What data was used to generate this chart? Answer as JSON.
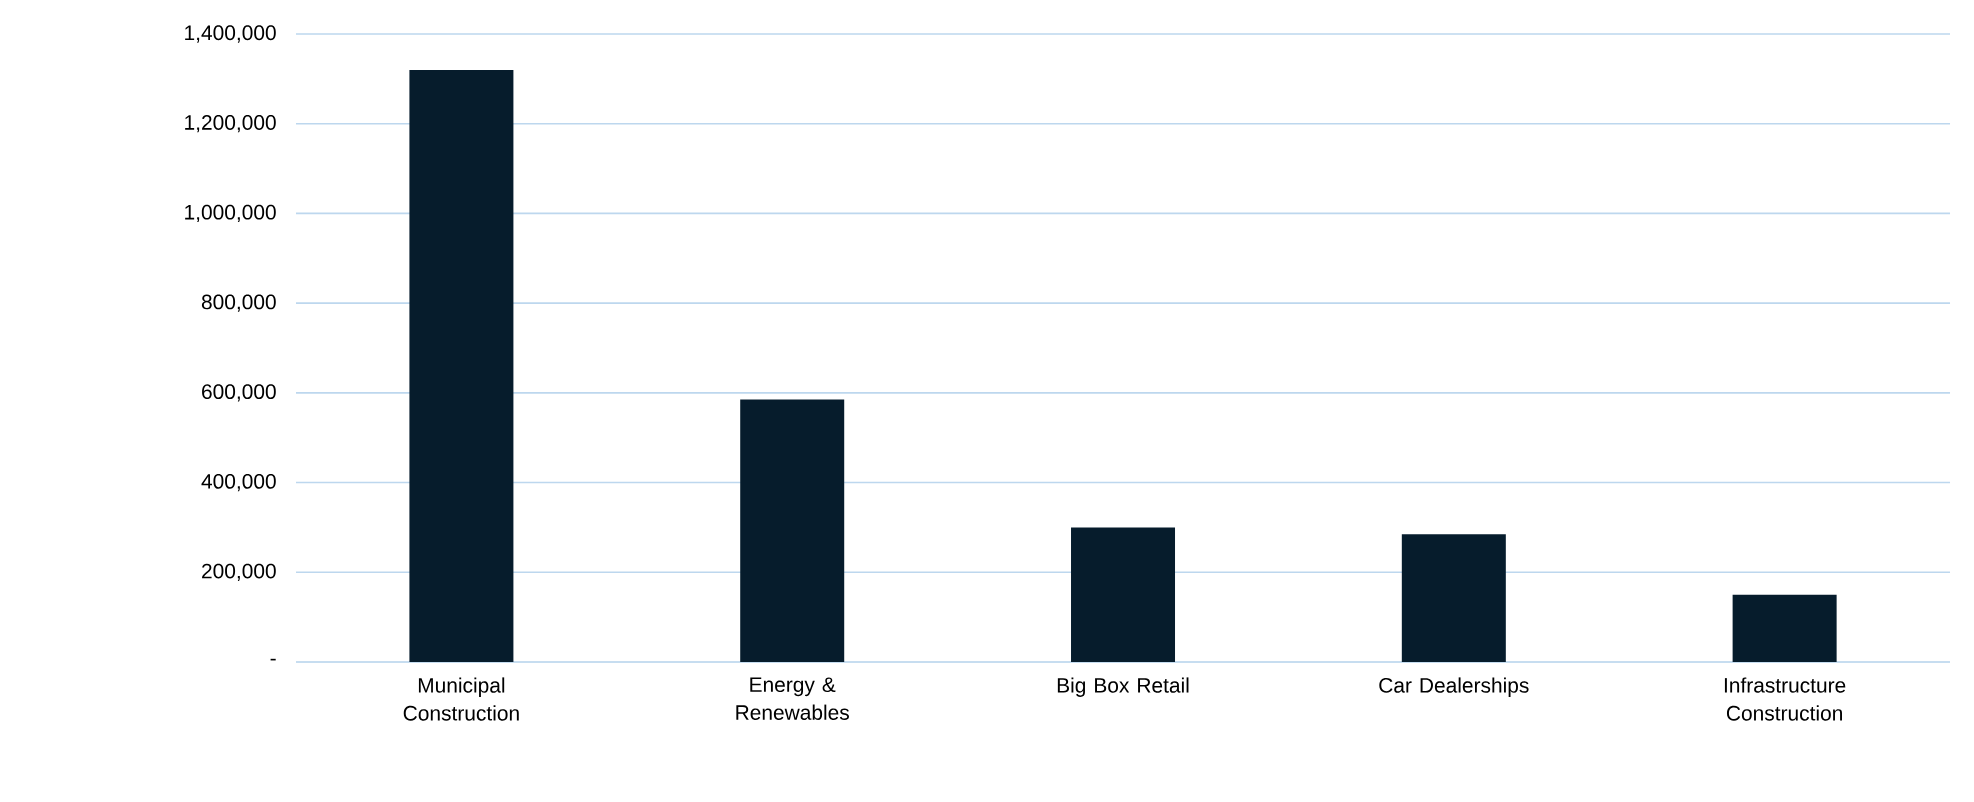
{
  "chart_data": {
    "type": "bar",
    "categories": [
      "Municipal Construction",
      "Energy & Renewables",
      "Big Box Retail",
      "Car Dealerships",
      "Infrastructure Construction"
    ],
    "values": [
      1320000,
      585000,
      300000,
      285000,
      150000
    ],
    "color": "#061c2c",
    "ylim": [
      0,
      1400000
    ],
    "yticks": [
      {
        "value": 0,
        "label": "-"
      },
      {
        "value": 200000,
        "label": "200,000"
      },
      {
        "value": 400000,
        "label": "400,000"
      },
      {
        "value": 600000,
        "label": "600,000"
      },
      {
        "value": 800000,
        "label": "800,000"
      },
      {
        "value": 1000000,
        "label": "1,000,000"
      },
      {
        "value": 1200000,
        "label": "1,200,000"
      },
      {
        "value": 1400000,
        "label": "1,400,000"
      }
    ],
    "grid": "y"
  }
}
